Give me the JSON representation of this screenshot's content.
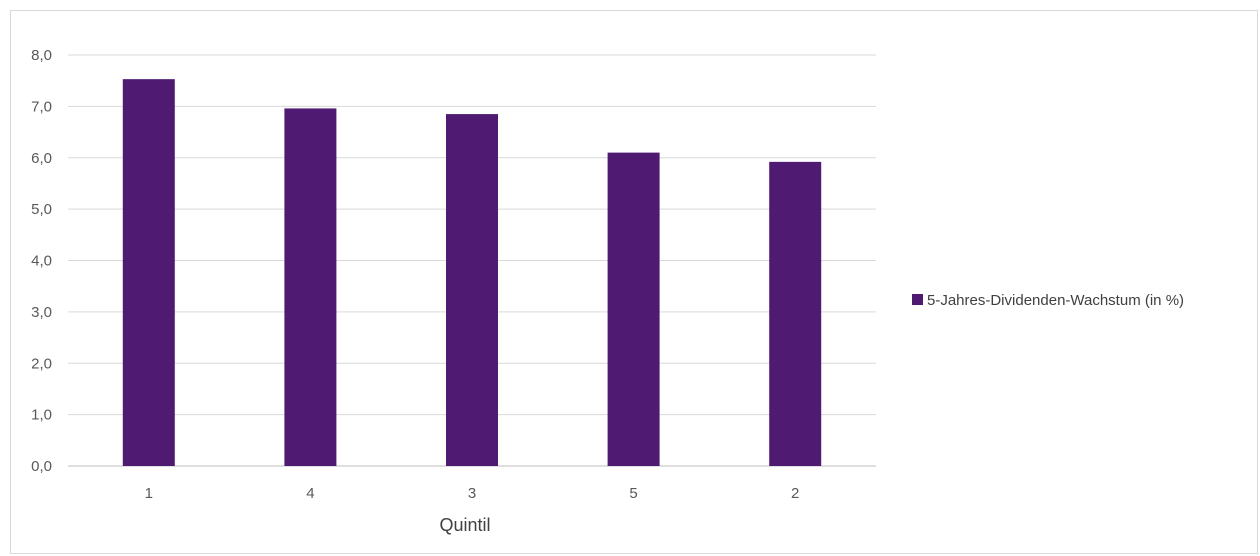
{
  "chart_data": {
    "type": "bar",
    "categories": [
      "1",
      "4",
      "3",
      "5",
      "2"
    ],
    "series": [
      {
        "name": "5-Jahres-Dividenden-Wachstum (in %)",
        "values": [
          7.53,
          6.96,
          6.85,
          6.1,
          5.92
        ],
        "color": "#4f1b72"
      }
    ],
    "title": "",
    "xlabel": "Quintil",
    "ylabel": "",
    "ylim": [
      0,
      8
    ],
    "yticks": [
      "0,0",
      "1,0",
      "2,0",
      "3,0",
      "4,0",
      "5,0",
      "6,0",
      "7,0",
      "8,0"
    ],
    "grid": true,
    "legend_position": "right"
  }
}
